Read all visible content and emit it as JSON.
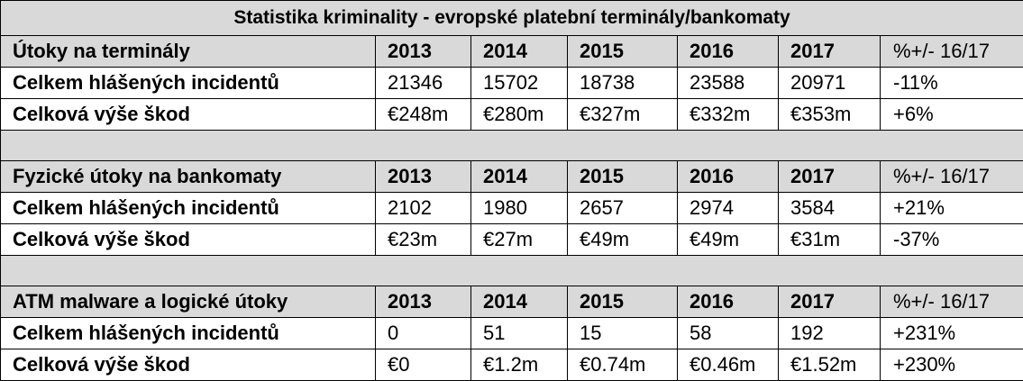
{
  "title": "Statistika kriminality -  evropské platební terminály/bankomaty",
  "sections": [
    {
      "label": "Útoky na terminály",
      "years": [
        "2013",
        "2014",
        "2015",
        "2016",
        "2017"
      ],
      "pct_header": "%+/- 16/17",
      "rows": [
        {
          "label": "Celkem hlášených incidentů",
          "values": [
            "21346",
            "15702",
            "18738",
            "23588",
            "20971"
          ],
          "pct": "-11%"
        },
        {
          "label": "Celková výše škod",
          "values": [
            "€248m",
            "€280m",
            "€327m",
            "€332m",
            "€353m"
          ],
          "pct": "+6%"
        }
      ]
    },
    {
      "label": "Fyzické útoky na bankomaty",
      "years": [
        "2013",
        "2014",
        "2015",
        "2016",
        "2017"
      ],
      "pct_header": "%+/- 16/17",
      "rows": [
        {
          "label": "Celkem hlášených incidentů",
          "values": [
            "2102",
            "1980",
            "2657",
            "2974",
            "3584"
          ],
          "pct": "+21%"
        },
        {
          "label": "Celková výše škod",
          "values": [
            "€23m",
            "€27m",
            "€49m",
            "€49m",
            "€31m"
          ],
          "pct": "-37%"
        }
      ]
    },
    {
      "label": "ATM malware a logické útoky",
      "years": [
        "2013",
        "2014",
        "2015",
        "2016",
        "2017"
      ],
      "pct_header": "%+/- 16/17",
      "rows": [
        {
          "label": "Celkem hlášených incidentů",
          "values": [
            "0",
            "51",
            "15",
            "58",
            "192"
          ],
          "pct": "+231%"
        },
        {
          "label": "Celková výše škod",
          "values": [
            "€0",
            "€1.2m",
            "€0.74m",
            "€0.46m",
            "€1.52m"
          ],
          "pct": "+230%"
        }
      ]
    }
  ]
}
